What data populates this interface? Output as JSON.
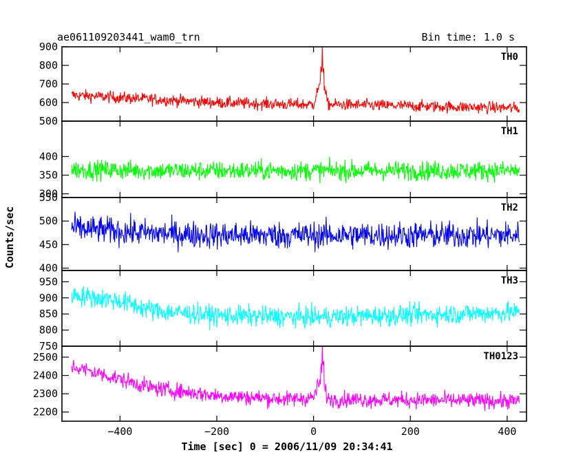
{
  "header": {
    "left": "ae061109203441_wam0_trn",
    "right": "Bin time: 1.0 s"
  },
  "chart_data": {
    "type": "line",
    "title": "ae061109203441_wam0_trn",
    "subtitle": "Bin time: 1.0 s",
    "xlabel": "Time [sec] 0 = 2006/11/09 20:34:41",
    "ylabel": "Counts/sec",
    "xlim": [
      -520,
      440
    ],
    "x_range_data": [
      -500,
      425
    ],
    "x_ticks": [
      -400,
      -200,
      0,
      200,
      400
    ],
    "x_tick_labels": [
      "−400",
      "−200",
      "0",
      "200",
      "400"
    ],
    "grid": false,
    "legend": "none",
    "panels": [
      {
        "name": "TH0",
        "color": "#ff0000",
        "ylim": [
          500,
          900
        ],
        "y_ticks": [
          500,
          600,
          700,
          800,
          900
        ],
        "baseline": [
          [
            -500,
            640
          ],
          [
            -350,
            620
          ],
          [
            -200,
            600
          ],
          [
            -50,
            590
          ],
          [
            0,
            590
          ],
          [
            10,
            680
          ],
          [
            20,
            700
          ],
          [
            30,
            590
          ],
          [
            425,
            570
          ]
        ],
        "spread": 55,
        "peak": {
          "x": 18,
          "y": 900
        }
      },
      {
        "name": "TH1",
        "color": "#00ff00",
        "ylim": [
          290,
          495
        ],
        "y_ticks": [
          300,
          350,
          400
        ],
        "baseline": [
          [
            -500,
            365
          ],
          [
            -300,
            362
          ],
          [
            0,
            362
          ],
          [
            425,
            362
          ]
        ],
        "spread": 45
      },
      {
        "name": "TH2",
        "color": "#0000ff",
        "ylim": [
          395,
          550
        ],
        "y_ticks": [
          400,
          450,
          500,
          550
        ],
        "baseline": [
          [
            -500,
            485
          ],
          [
            -350,
            475
          ],
          [
            -200,
            470
          ],
          [
            425,
            470
          ]
        ],
        "spread": 50
      },
      {
        "name": "TH3",
        "color": "#00ffff",
        "ylim": [
          750,
          985
        ],
        "y_ticks": [
          750,
          800,
          850,
          900,
          950
        ],
        "baseline": [
          [
            -500,
            910
          ],
          [
            -400,
            890
          ],
          [
            -330,
            860
          ],
          [
            -200,
            845
          ],
          [
            0,
            840
          ],
          [
            425,
            855
          ]
        ],
        "spread": 55
      },
      {
        "name": "TH0123",
        "color": "#ff00ff",
        "ylim": [
          2150,
          2560
        ],
        "y_ticks": [
          2200,
          2300,
          2400,
          2500
        ],
        "baseline": [
          [
            -500,
            2450
          ],
          [
            -400,
            2380
          ],
          [
            -330,
            2330
          ],
          [
            -200,
            2290
          ],
          [
            -50,
            2270
          ],
          [
            0,
            2280
          ],
          [
            10,
            2350
          ],
          [
            20,
            2360
          ],
          [
            30,
            2270
          ],
          [
            425,
            2260
          ]
        ],
        "spread": 75,
        "peak": {
          "x": 18,
          "y": 2570
        }
      }
    ]
  }
}
